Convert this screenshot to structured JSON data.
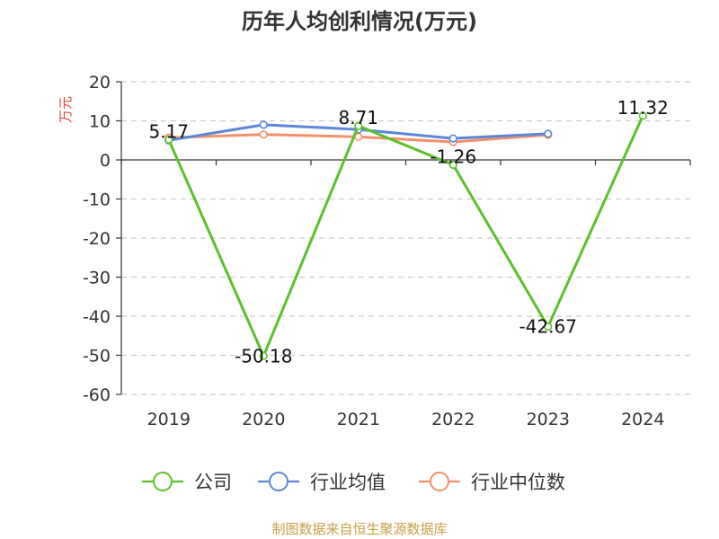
{
  "chart_data": {
    "type": "line",
    "title": "历年人均创利情况(万元)",
    "ylabel": "万元",
    "xlabel": "",
    "categories": [
      "2019",
      "2020",
      "2021",
      "2022",
      "2023",
      "2024"
    ],
    "ylim": [
      -60,
      20
    ],
    "yticks": [
      20,
      10,
      0,
      -10,
      -20,
      -30,
      -40,
      -50,
      -60
    ],
    "grid": true,
    "legend_position": "bottom",
    "series": [
      {
        "name": "公司",
        "color": "#5cc02c",
        "values": [
          5.17,
          -50.18,
          8.71,
          -1.26,
          -42.67,
          11.32
        ],
        "data_labels": [
          "5.17",
          "-50.18",
          "8.71",
          "-1.26",
          "-42.67",
          "11.32"
        ]
      },
      {
        "name": "行业均值",
        "color": "#5b87d8",
        "values": [
          5.0,
          9.0,
          7.8,
          5.5,
          6.7,
          null
        ]
      },
      {
        "name": "行业中位数",
        "color": "#f5906b",
        "values": [
          5.7,
          6.5,
          5.9,
          4.6,
          6.4,
          null
        ]
      }
    ]
  },
  "footer": {
    "source": "制图数据来自恒生聚源数据库"
  },
  "colors": {
    "axis": "#333333",
    "grid": "#cccccc",
    "unit": "#e0463c",
    "source": "#c8a045"
  }
}
